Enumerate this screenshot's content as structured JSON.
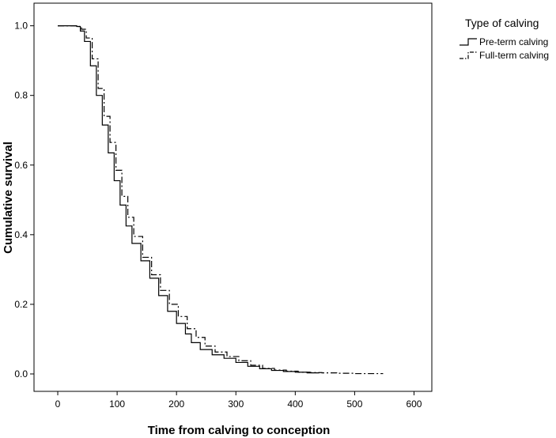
{
  "chart_data": {
    "type": "line",
    "title": "",
    "xlabel": "Time from calving to conception",
    "ylabel": "Cumulative survival",
    "xlim": [
      -40,
      630
    ],
    "ylim": [
      -0.05,
      1.065
    ],
    "xticks": [
      "0",
      "100",
      "200",
      "300",
      "400",
      "500",
      "600"
    ],
    "yticks": [
      "0.0",
      "0.2",
      "0.4",
      "0.6",
      "0.8",
      "1.0"
    ],
    "grid": false,
    "legend": {
      "title": "Type of calving",
      "placement": "right-outside-top"
    },
    "series": [
      {
        "name": "Pre-term calving",
        "style": "solid",
        "color": "#000000",
        "x": [
          0,
          25,
          32,
          38,
          45,
          55,
          65,
          75,
          85,
          95,
          105,
          115,
          125,
          140,
          155,
          170,
          185,
          200,
          215,
          225,
          240,
          260,
          280,
          300,
          320,
          340,
          360,
          380,
          400,
          420,
          440
        ],
        "y": [
          1.0,
          1.0,
          0.998,
          0.985,
          0.955,
          0.885,
          0.8,
          0.715,
          0.635,
          0.555,
          0.485,
          0.425,
          0.375,
          0.325,
          0.275,
          0.225,
          0.18,
          0.145,
          0.115,
          0.09,
          0.07,
          0.055,
          0.045,
          0.033,
          0.022,
          0.015,
          0.01,
          0.007,
          0.005,
          0.003,
          0.002
        ]
      },
      {
        "name": "Full-term calving",
        "style": "dash-dot",
        "color": "#000000",
        "x": [
          0,
          30,
          35,
          40,
          48,
          58,
          68,
          78,
          88,
          98,
          108,
          118,
          128,
          143,
          158,
          173,
          188,
          203,
          218,
          233,
          248,
          265,
          285,
          305,
          325,
          345,
          365,
          385,
          405,
          425,
          445,
          470,
          480,
          500,
          548
        ],
        "y": [
          1.0,
          1.0,
          0.998,
          0.99,
          0.965,
          0.905,
          0.82,
          0.74,
          0.665,
          0.585,
          0.51,
          0.45,
          0.395,
          0.335,
          0.285,
          0.24,
          0.2,
          0.165,
          0.13,
          0.105,
          0.08,
          0.063,
          0.05,
          0.038,
          0.025,
          0.016,
          0.011,
          0.008,
          0.005,
          0.004,
          0.003,
          0.002,
          0.002,
          0.001,
          0.001
        ]
      }
    ]
  }
}
